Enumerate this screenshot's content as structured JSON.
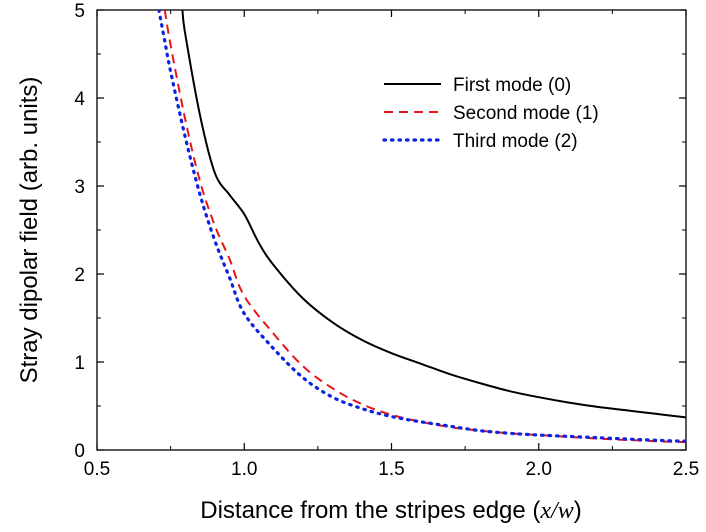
{
  "chart_data": {
    "type": "line",
    "title": "",
    "xlabel": "Distance from the stripes edge (",
    "xlabel_var": "x/w",
    "xlabel_close": ")",
    "ylabel": "Stray dipolar field (arb. units)",
    "xlim": [
      0.5,
      2.5
    ],
    "ylim": [
      0,
      5
    ],
    "x_ticks": [
      0.5,
      1.0,
      1.5,
      2.0,
      2.5
    ],
    "x_tick_labels": [
      "0.5",
      "1.0",
      "1.5",
      "2.0",
      "2.5"
    ],
    "y_ticks": [
      0,
      1,
      2,
      3,
      4,
      5
    ],
    "y_tick_labels": [
      "0",
      "1",
      "2",
      "3",
      "4",
      "5"
    ],
    "grid": false,
    "legend_position": "top-right",
    "series": [
      {
        "name": "First mode (0)",
        "color": "#000000",
        "dash": "solid",
        "x": [
          0.79,
          0.8,
          0.85,
          0.9,
          0.95,
          1.0,
          1.05,
          1.1,
          1.2,
          1.3,
          1.4,
          1.5,
          1.6,
          1.7,
          1.8,
          1.9,
          2.0,
          2.1,
          2.2,
          2.3,
          2.4,
          2.5
        ],
        "y": [
          5.0,
          4.72,
          3.8,
          3.15,
          2.9,
          2.68,
          2.35,
          2.1,
          1.72,
          1.45,
          1.25,
          1.1,
          0.98,
          0.86,
          0.76,
          0.67,
          0.6,
          0.54,
          0.49,
          0.45,
          0.41,
          0.37
        ]
      },
      {
        "name": "Second mode (1)",
        "color": "#e8141b",
        "dash": "dashed",
        "x": [
          0.73,
          0.75,
          0.8,
          0.85,
          0.9,
          0.95,
          1.0,
          1.1,
          1.2,
          1.3,
          1.4,
          1.5,
          1.6,
          1.7,
          1.8,
          1.9,
          2.0,
          2.2,
          2.4,
          2.5
        ],
        "y": [
          5.0,
          4.6,
          3.75,
          3.05,
          2.55,
          2.17,
          1.75,
          1.32,
          0.95,
          0.7,
          0.52,
          0.4,
          0.32,
          0.26,
          0.22,
          0.19,
          0.17,
          0.13,
          0.1,
          0.09
        ]
      },
      {
        "name": "Third mode (2)",
        "color": "#0a23e0",
        "dash": "dotted",
        "x": [
          0.71,
          0.73,
          0.75,
          0.8,
          0.85,
          0.9,
          0.95,
          1.0,
          1.1,
          1.2,
          1.3,
          1.4,
          1.5,
          1.6,
          1.7,
          1.8,
          1.9,
          2.0,
          2.2,
          2.4,
          2.5
        ],
        "y": [
          5.0,
          4.65,
          4.3,
          3.55,
          2.9,
          2.38,
          1.96,
          1.55,
          1.15,
          0.82,
          0.6,
          0.47,
          0.38,
          0.32,
          0.27,
          0.22,
          0.19,
          0.17,
          0.14,
          0.11,
          0.1
        ]
      }
    ]
  }
}
